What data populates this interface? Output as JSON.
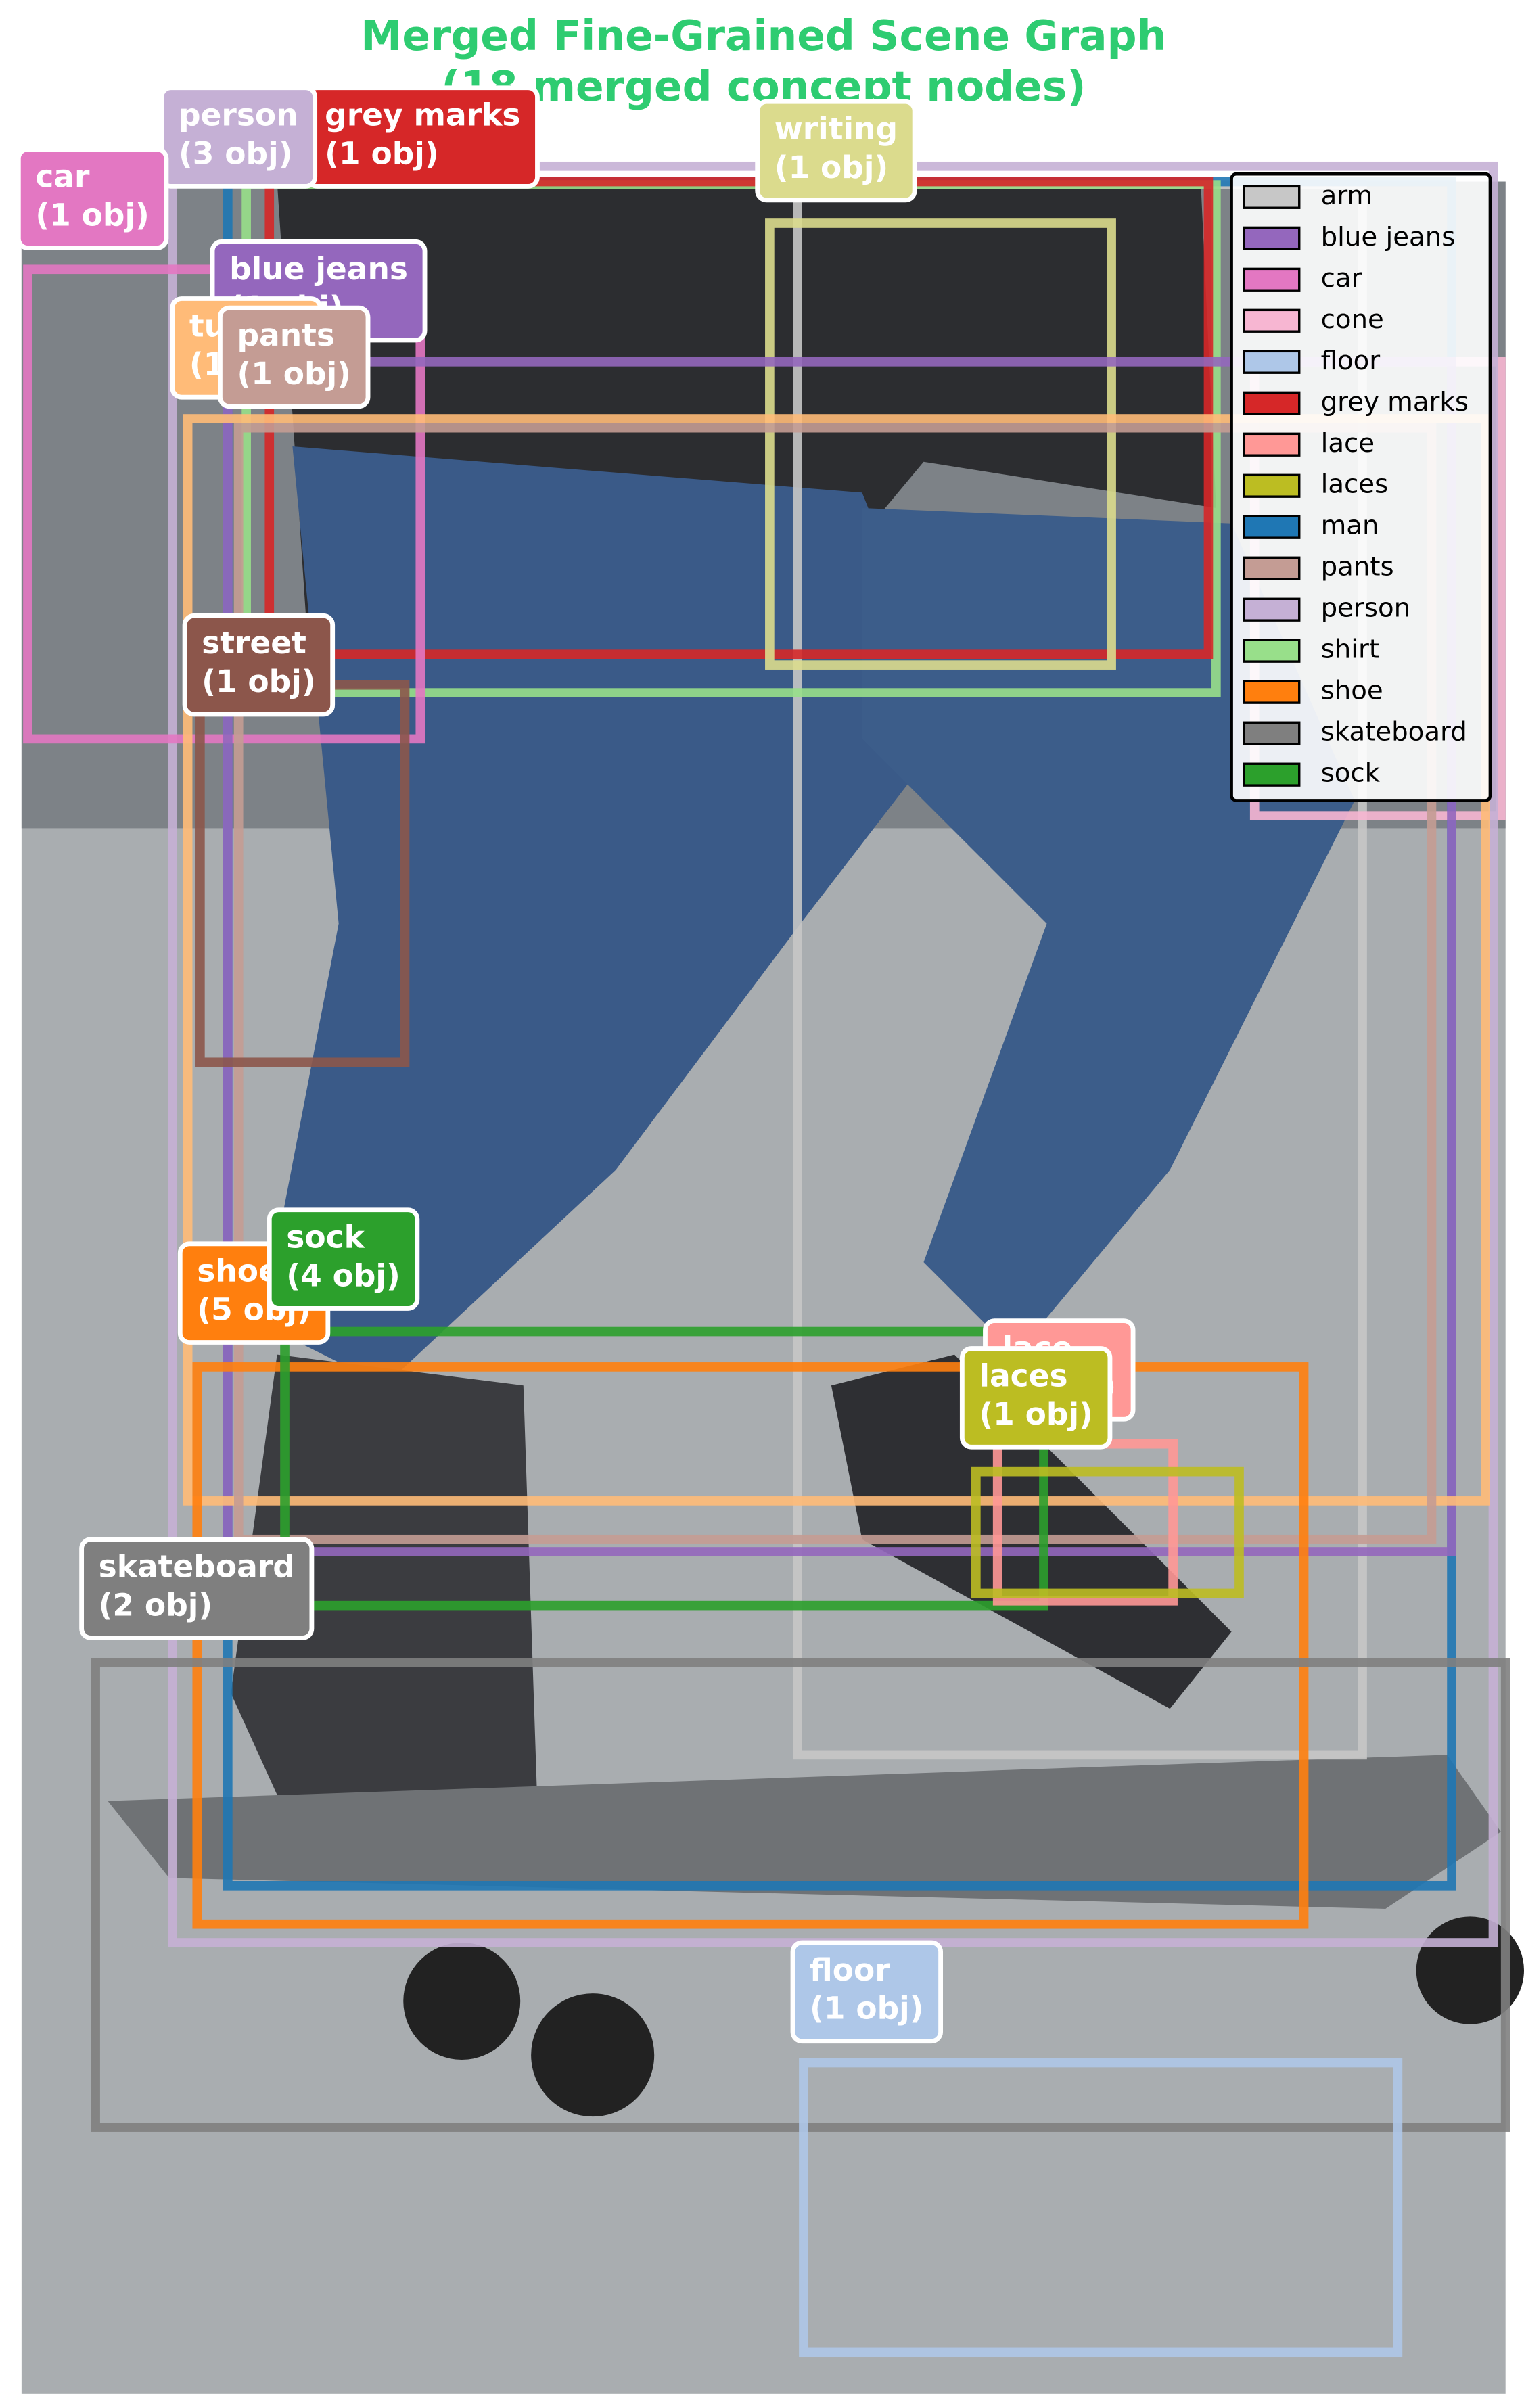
{
  "title": [
    "Merged Fine-Grained Scene Graph",
    "(18 merged concept nodes)"
  ],
  "nodes": [
    {
      "label": "grey marks",
      "count": "(1 obj)",
      "color": "#d62728"
    },
    {
      "label": "person",
      "count": "(3 obj)",
      "color": "#c5b0d5"
    },
    {
      "label": "car",
      "count": "(1 obj)",
      "color": "#e377c2"
    },
    {
      "label": "writing",
      "count": "(1 obj)",
      "color": "#dbdb8d"
    },
    {
      "label": "blue jeans",
      "count": "(1 obj)",
      "color": "#9467bd"
    },
    {
      "label": "tu",
      "count": "(1 obj)",
      "color": "#ffbb78"
    },
    {
      "label": "pants",
      "count": "(1 obj)",
      "color": "#c49c94"
    },
    {
      "label": "street",
      "count": "(1 obj)",
      "color": "#8c564b"
    },
    {
      "label": "shoe",
      "count": "(5 obj)",
      "color": "#ff7f0e"
    },
    {
      "label": "sock",
      "count": "(4 obj)",
      "color": "#2ca02c"
    },
    {
      "label": "lace",
      "count": "(1 obj)",
      "color": "#ff9896"
    },
    {
      "label": "laces",
      "count": "(1 obj)",
      "color": "#bcbd22"
    },
    {
      "label": "skateboard",
      "count": "(2 obj)",
      "color": "#7f7f7f"
    },
    {
      "label": "floor",
      "count": "(1 obj)",
      "color": "#aec7e8"
    }
  ],
  "legend": [
    {
      "name": "arm",
      "color": "#c7c7c7"
    },
    {
      "name": "blue jeans",
      "color": "#9467bd"
    },
    {
      "name": "car",
      "color": "#e377c2"
    },
    {
      "name": "cone",
      "color": "#f7b6d2"
    },
    {
      "name": "floor",
      "color": "#aec7e8"
    },
    {
      "name": "grey marks",
      "color": "#d62728"
    },
    {
      "name": "lace",
      "color": "#ff9896"
    },
    {
      "name": "laces",
      "color": "#bcbd22"
    },
    {
      "name": "man",
      "color": "#1f77b4"
    },
    {
      "name": "pants",
      "color": "#c49c94"
    },
    {
      "name": "person",
      "color": "#c5b0d5"
    },
    {
      "name": "shirt",
      "color": "#98df8a"
    },
    {
      "name": "shoe",
      "color": "#ff7f0e"
    },
    {
      "name": "skateboard",
      "color": "#7f7f7f"
    },
    {
      "name": "sock",
      "color": "#2ca02c"
    }
  ]
}
